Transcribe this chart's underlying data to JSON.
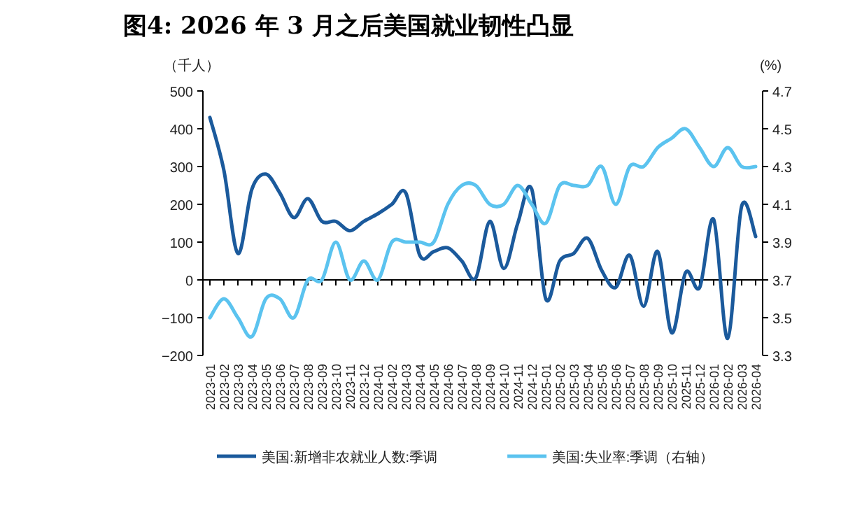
{
  "chart_data": {
    "type": "line",
    "title": "图4:  2026 年 3 月之后美国就业韧性凸显",
    "ylabel": "（千人）",
    "y2label": "(%)",
    "categories": [
      "2023-01",
      "2023-02",
      "2023-03",
      "2023-04",
      "2023-05",
      "2023-06",
      "2023-07",
      "2023-08",
      "2023-09",
      "2023-10",
      "2023-11",
      "2023-12",
      "2024-01",
      "2024-02",
      "2024-03",
      "2024-04",
      "2024-05",
      "2024-06",
      "2024-07",
      "2024-08",
      "2024-09",
      "2024-10",
      "2024-11",
      "2024-12",
      "2025-01",
      "2025-02",
      "2025-03",
      "2025-04",
      "2025-05",
      "2025-06",
      "2025-07",
      "2025-08",
      "2025-09",
      "2025-10",
      "2025-11",
      "2025-12",
      "2026-01",
      "2026-02",
      "2026-03",
      "2026-04"
    ],
    "series": [
      {
        "name": "美国:新增非农就业人数:季调",
        "color": "#1b5a9c",
        "values": [
          430,
          290,
          70,
          240,
          280,
          230,
          165,
          215,
          155,
          155,
          130,
          155,
          175,
          200,
          230,
          65,
          75,
          85,
          50,
          5,
          155,
          30,
          150,
          240,
          -50,
          50,
          70,
          110,
          25,
          -20,
          65,
          -70,
          75,
          -140,
          20,
          -20,
          160,
          -155,
          195,
          115
        ]
      },
      {
        "name": "美国:失业率:季调（右轴）",
        "color": "#5bc3ef",
        "axis": "y2",
        "values": [
          3.5,
          3.6,
          3.5,
          3.4,
          3.6,
          3.6,
          3.5,
          3.7,
          3.7,
          3.9,
          3.7,
          3.8,
          3.7,
          3.9,
          3.9,
          3.9,
          3.9,
          4.1,
          4.2,
          4.2,
          4.1,
          4.1,
          4.2,
          4.1,
          4.0,
          4.2,
          4.2,
          4.2,
          4.3,
          4.1,
          4.3,
          4.3,
          4.4,
          4.45,
          4.5,
          4.4,
          4.3,
          4.4,
          4.3,
          4.3
        ]
      }
    ],
    "ylim": [
      -200,
      500
    ],
    "yticks": [
      -200,
      -100,
      0,
      100,
      200,
      300,
      400,
      500
    ],
    "y2lim": [
      3.3,
      4.7
    ],
    "y2ticks": [
      3.3,
      3.5,
      3.7,
      3.9,
      4.1,
      4.3,
      4.5,
      4.7
    ],
    "legend": "bottom"
  }
}
